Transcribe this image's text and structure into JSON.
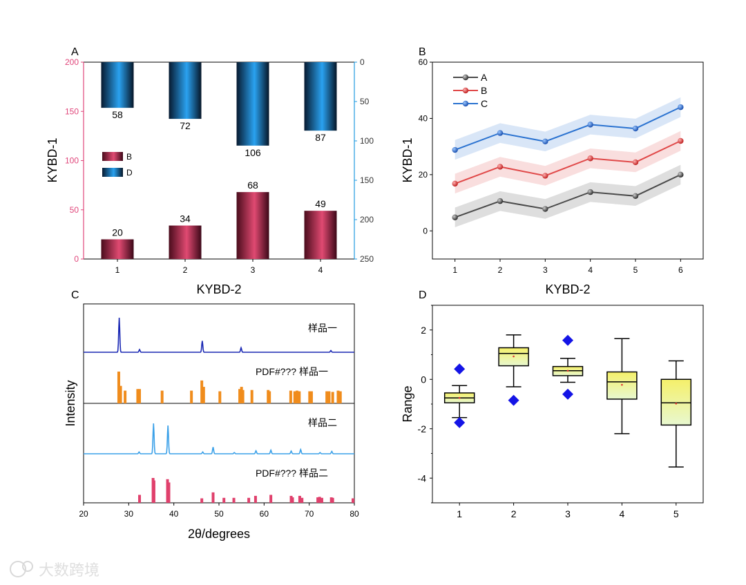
{
  "panels": {
    "A": "A",
    "B": "B",
    "C": "C",
    "D": "D"
  },
  "watermark": "大数跨境",
  "colors": {
    "pink": "#dc3a64",
    "pink_axis": "#e0457a",
    "blue_axis": "#1f9ae0",
    "blue_bar": "#1a8ad6",
    "line_A": "#4a4a4a",
    "line_B": "#e04848",
    "line_C": "#2a72d0",
    "xrd_top": "#1a28b4",
    "xrd_ref1": "#f08c1c",
    "xrd_bottom": "#3aa0e8",
    "xrd_ref2": "#e0406c",
    "box_fill_top": "#f5f06a",
    "box_fill_bottom": "#e8f8d0",
    "outlier": "#1414e6"
  },
  "chart_data": [
    {
      "type": "bar",
      "panel": "A",
      "categories": [
        "1",
        "2",
        "3",
        "4"
      ],
      "xlabel": "KYBD-2",
      "ylabel": "KYBD-1",
      "ylim_left": [
        0,
        200
      ],
      "ylim_right": [
        250,
        0
      ],
      "left_ticks": [
        "0",
        "50",
        "100",
        "150",
        "200"
      ],
      "right_ticks": [
        "0",
        "50",
        "100",
        "150",
        "200",
        "250"
      ],
      "legend_position": "middle-left",
      "series": [
        {
          "name": "B",
          "axis": "left",
          "values": [
            20,
            34,
            68,
            49
          ]
        },
        {
          "name": "D",
          "axis": "right-inverted",
          "values": [
            58,
            72,
            106,
            87
          ]
        }
      ]
    },
    {
      "type": "line",
      "panel": "B",
      "x": [
        1,
        2,
        3,
        4,
        5,
        6
      ],
      "x_ticks": [
        "1",
        "2",
        "3",
        "4",
        "5",
        "6"
      ],
      "xlim": [
        0.5,
        6.5
      ],
      "xlabel": "KYBD-2",
      "ylabel": "KYBD-1",
      "ylim": [
        -10,
        60
      ],
      "y_ticks": [
        "0",
        "20",
        "40",
        "60"
      ],
      "legend_position": "top-left",
      "series": [
        {
          "name": "A",
          "values": [
            4.8,
            10.6,
            7.8,
            13.8,
            12.4,
            20.0
          ],
          "band": 3.5
        },
        {
          "name": "B",
          "values": [
            16.8,
            22.8,
            19.6,
            25.8,
            24.4,
            32.0
          ],
          "band": 3.5
        },
        {
          "name": "C",
          "values": [
            28.8,
            34.8,
            31.8,
            37.8,
            36.4,
            44.0
          ],
          "band": 3.5
        }
      ]
    },
    {
      "type": "line",
      "panel": "C",
      "xlabel": "2θ/degrees",
      "ylabel": "Intensity",
      "xlim": [
        20,
        80
      ],
      "x_ticks": [
        "20",
        "30",
        "40",
        "50",
        "60",
        "70",
        "80"
      ],
      "series": [
        {
          "name": "样品一",
          "kind": "pattern",
          "peaks": [
            [
              27.9,
              1.0
            ],
            [
              32.4,
              0.08
            ],
            [
              46.3,
              0.33
            ],
            [
              54.9,
              0.13
            ],
            [
              74.8,
              0.05
            ]
          ]
        },
        {
          "name": "PDF#??? 样品一",
          "kind": "reference",
          "peaks": [
            [
              27.8,
              1.0
            ],
            [
              28.2,
              0.55
            ],
            [
              29.2,
              0.4
            ],
            [
              32.0,
              0.45
            ],
            [
              32.4,
              0.45
            ],
            [
              37.4,
              0.4
            ],
            [
              43.9,
              0.4
            ],
            [
              46.2,
              0.72
            ],
            [
              46.6,
              0.52
            ],
            [
              50.2,
              0.38
            ],
            [
              54.6,
              0.45
            ],
            [
              55.0,
              0.52
            ],
            [
              55.3,
              0.42
            ],
            [
              57.3,
              0.42
            ],
            [
              60.9,
              0.42
            ],
            [
              61.2,
              0.38
            ],
            [
              65.9,
              0.4
            ],
            [
              66.8,
              0.38
            ],
            [
              67.3,
              0.4
            ],
            [
              67.8,
              0.38
            ],
            [
              70.1,
              0.38
            ],
            [
              70.5,
              0.38
            ],
            [
              73.9,
              0.38
            ],
            [
              74.4,
              0.38
            ],
            [
              75.2,
              0.36
            ],
            [
              76.4,
              0.4
            ],
            [
              76.9,
              0.38
            ]
          ]
        },
        {
          "name": "样品二",
          "kind": "pattern",
          "peaks": [
            [
              32.3,
              0.06
            ],
            [
              35.5,
              1.0
            ],
            [
              38.7,
              0.93
            ],
            [
              46.4,
              0.06
            ],
            [
              48.7,
              0.22
            ],
            [
              53.4,
              0.04
            ],
            [
              58.2,
              0.1
            ],
            [
              61.5,
              0.12
            ],
            [
              66.0,
              0.09
            ],
            [
              68.1,
              0.14
            ],
            [
              72.4,
              0.04
            ],
            [
              75.0,
              0.08
            ]
          ]
        },
        {
          "name": "PDF#??? 样品二",
          "kind": "reference",
          "peaks": [
            [
              32.4,
              0.32
            ],
            [
              35.4,
              1.0
            ],
            [
              35.6,
              0.9
            ],
            [
              38.6,
              0.95
            ],
            [
              38.9,
              0.82
            ],
            [
              46.2,
              0.18
            ],
            [
              48.7,
              0.42
            ],
            [
              51.1,
              0.2
            ],
            [
              53.3,
              0.2
            ],
            [
              56.6,
              0.2
            ],
            [
              58.1,
              0.28
            ],
            [
              61.5,
              0.32
            ],
            [
              66.0,
              0.28
            ],
            [
              66.3,
              0.22
            ],
            [
              67.9,
              0.28
            ],
            [
              68.4,
              0.2
            ],
            [
              71.9,
              0.22
            ],
            [
              72.3,
              0.24
            ],
            [
              72.8,
              0.2
            ],
            [
              74.9,
              0.22
            ],
            [
              75.2,
              0.2
            ],
            [
              79.7,
              0.18
            ]
          ]
        }
      ]
    },
    {
      "type": "box",
      "panel": "D",
      "categories": [
        "1",
        "2",
        "3",
        "4",
        "5"
      ],
      "ylabel": "Range",
      "ylim": [
        -5,
        3
      ],
      "y_ticks": [
        "2",
        "0",
        "-2",
        "-4"
      ],
      "boxes": [
        {
          "whisker_low": -1.55,
          "q1": -0.95,
          "median": -0.75,
          "q3": -0.55,
          "whisker_high": -0.25,
          "mean": -0.75,
          "outliers": [
            0.42,
            -1.75
          ]
        },
        {
          "whisker_low": -0.3,
          "q1": 0.55,
          "median": 1.05,
          "q3": 1.28,
          "whisker_high": 1.8,
          "mean": 0.93,
          "outliers": [
            -0.85
          ]
        },
        {
          "whisker_low": -0.12,
          "q1": 0.15,
          "median": 0.35,
          "q3": 0.52,
          "whisker_high": 0.85,
          "mean": 0.35,
          "outliers": [
            1.58,
            -0.6
          ]
        },
        {
          "whisker_low": -2.2,
          "q1": -0.8,
          "median": -0.1,
          "q3": 0.3,
          "whisker_high": 1.65,
          "mean": -0.22,
          "outliers": []
        },
        {
          "whisker_low": -3.55,
          "q1": -1.85,
          "median": -0.95,
          "q3": 0.0,
          "whisker_high": 0.75,
          "mean": -0.98,
          "outliers": []
        }
      ]
    }
  ]
}
